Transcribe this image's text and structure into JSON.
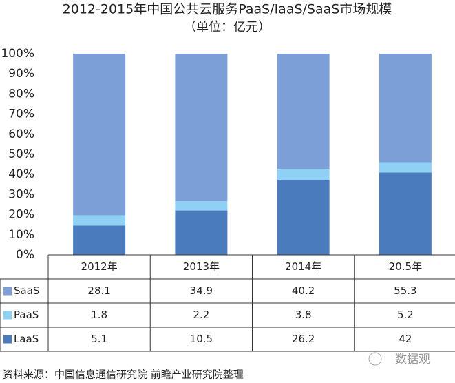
{
  "chart_data": {
    "type": "stacked_bar_percent",
    "title": "2012-2015年中国公共云服务PaaS/IaaS/SaaS市场规模",
    "subtitle": "（单位：亿元）",
    "categories": [
      "2012年",
      "2013年",
      "2014年",
      "20.5年"
    ],
    "series": [
      {
        "name": "SaaS",
        "color": "#7b9fd6",
        "values": [
          28.1,
          34.9,
          40.2,
          55.3
        ]
      },
      {
        "name": "PaaS",
        "color": "#8fd0f5",
        "values": [
          1.8,
          2.2,
          3.8,
          5.2
        ]
      },
      {
        "name": "LaaS",
        "color": "#4a7bbd",
        "values": [
          5.1,
          10.5,
          26.2,
          42
        ]
      }
    ],
    "ylim": [
      0,
      100
    ],
    "yticks": [
      {
        "value": 0,
        "label": "0%"
      },
      {
        "value": 10,
        "label": "10%"
      },
      {
        "value": 20,
        "label": "20%"
      },
      {
        "value": 30,
        "label": "30%"
      },
      {
        "value": 40,
        "label": "40%"
      },
      {
        "value": 50,
        "label": "50%"
      },
      {
        "value": 60,
        "label": "60%"
      },
      {
        "value": 70,
        "label": "70%"
      },
      {
        "value": 80,
        "label": "80%"
      },
      {
        "value": 90,
        "label": "90%"
      },
      {
        "value": 100,
        "label": "100%"
      }
    ],
    "source": "资料来源：中国信息通信研究院 前瞻产业研究院整理",
    "watermark": "数据观"
  }
}
